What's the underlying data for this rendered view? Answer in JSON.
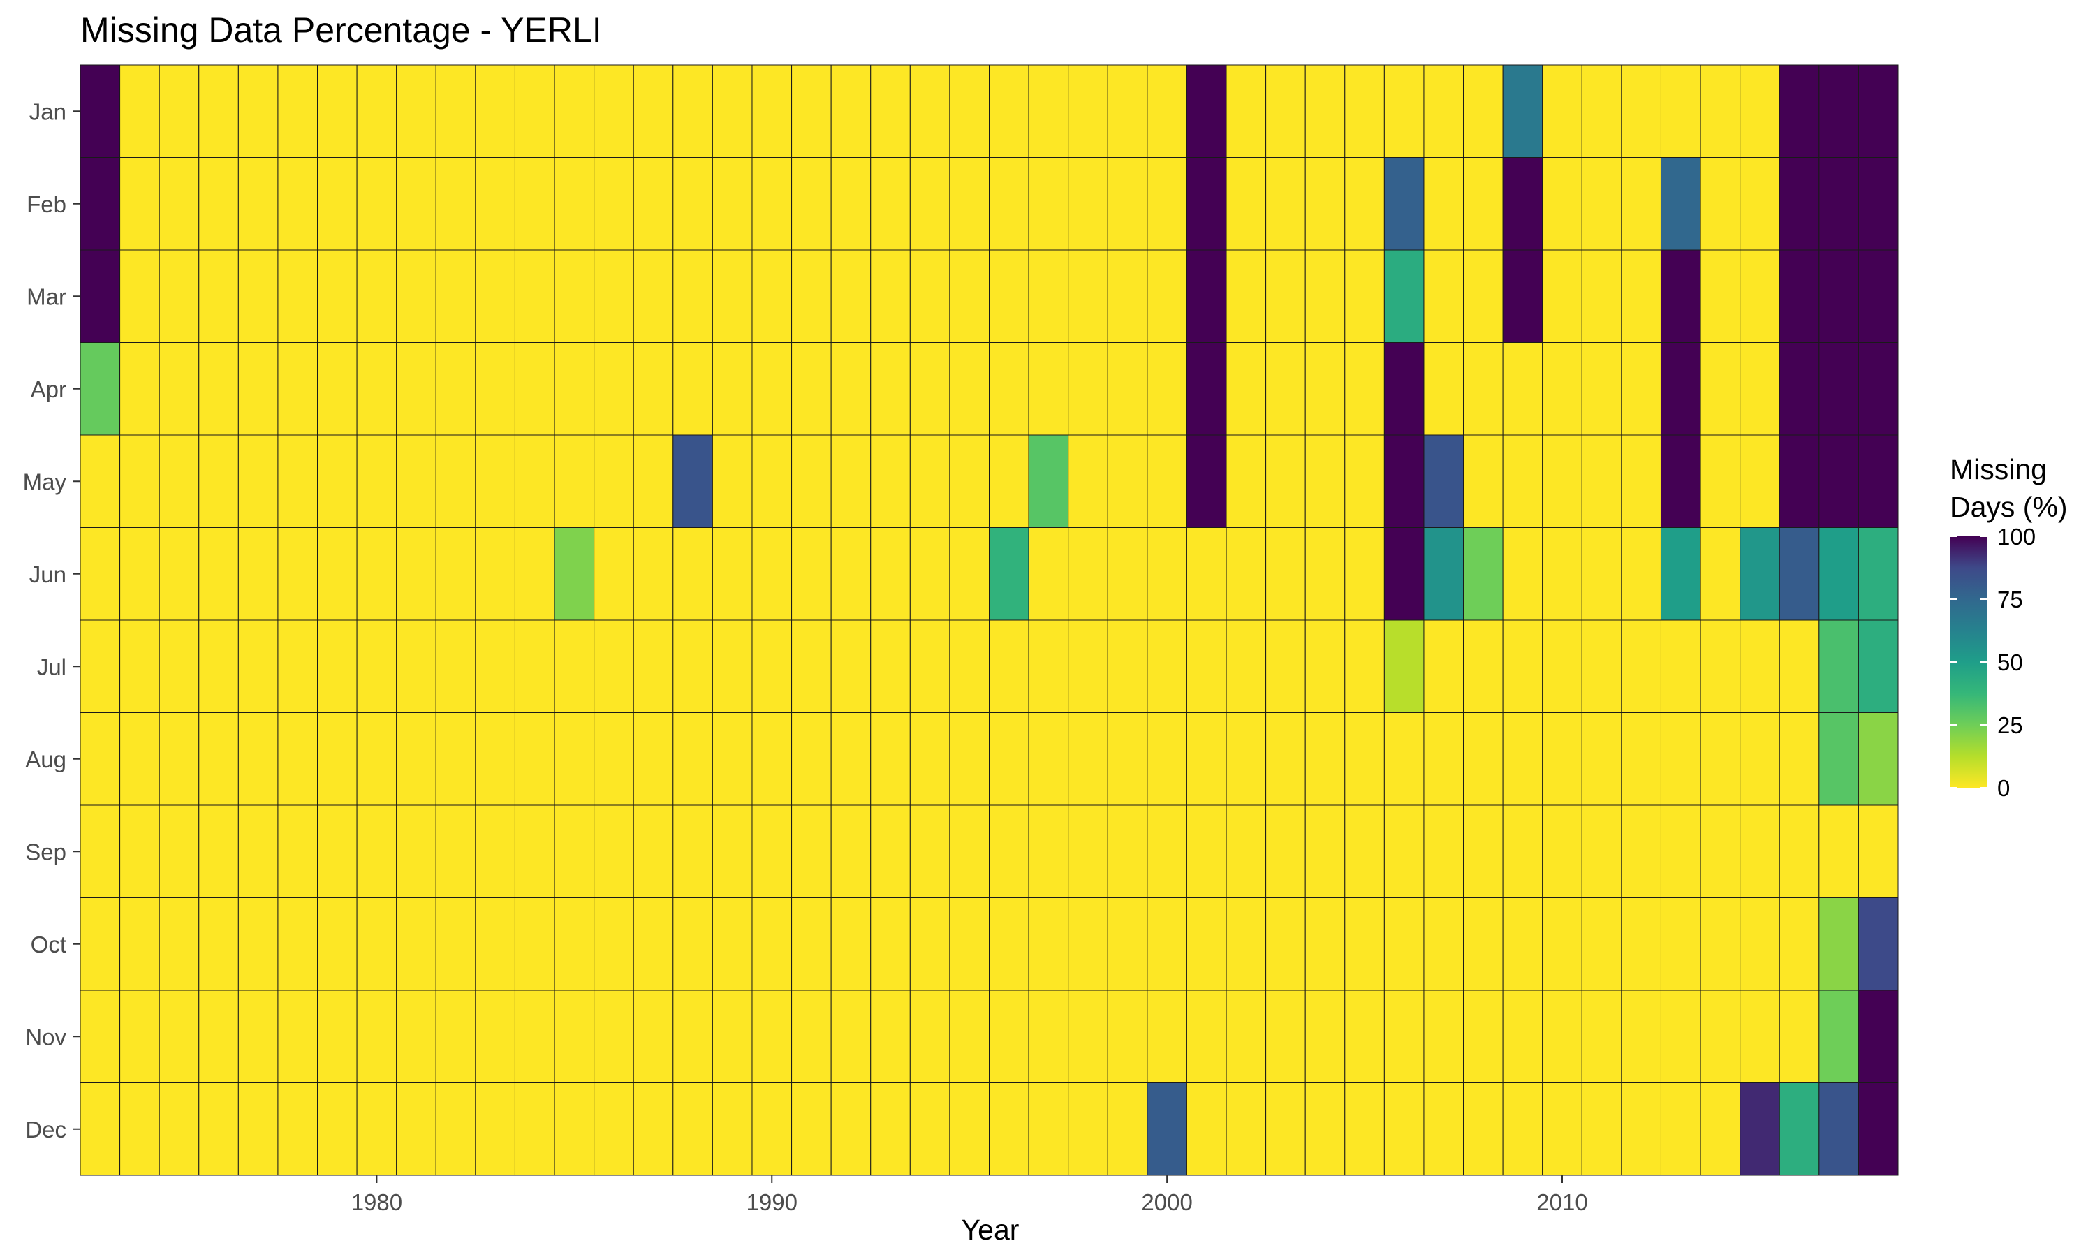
{
  "chart_data": {
    "type": "heatmap",
    "title": "Missing Data Percentage - YERLI",
    "xlabel": "Year",
    "ylabel": "",
    "x_start": 1973,
    "x_end": 2018,
    "xlim": [
      1972.5,
      2018.5
    ],
    "x_ticks": [
      1980,
      1990,
      2000,
      2010
    ],
    "months": [
      "Jan",
      "Feb",
      "Mar",
      "Apr",
      "May",
      "Jun",
      "Jul",
      "Aug",
      "Sep",
      "Oct",
      "Nov",
      "Dec"
    ],
    "colorscale": "viridis (reversed: 0 = yellow, 100 = dark purple)",
    "default_value": 0,
    "grid": false,
    "legend": {
      "title_lines": [
        "Missing",
        "Days (%)"
      ],
      "ticks": [
        0,
        25,
        50,
        75,
        100
      ],
      "range": [
        0,
        100
      ],
      "position": "right"
    },
    "nonzero_cells": [
      {
        "year": 1973,
        "month": "Jan",
        "value": 100
      },
      {
        "year": 1973,
        "month": "Feb",
        "value": 100
      },
      {
        "year": 1973,
        "month": "Mar",
        "value": 100
      },
      {
        "year": 1973,
        "month": "Apr",
        "value": 27
      },
      {
        "year": 1985,
        "month": "Jun",
        "value": 22
      },
      {
        "year": 1988,
        "month": "May",
        "value": 83
      },
      {
        "year": 1996,
        "month": "Jun",
        "value": 40
      },
      {
        "year": 1997,
        "month": "May",
        "value": 30
      },
      {
        "year": 2000,
        "month": "Dec",
        "value": 80
      },
      {
        "year": 2001,
        "month": "Jan",
        "value": 100
      },
      {
        "year": 2001,
        "month": "Feb",
        "value": 100
      },
      {
        "year": 2001,
        "month": "Mar",
        "value": 100
      },
      {
        "year": 2001,
        "month": "Apr",
        "value": 100
      },
      {
        "year": 2001,
        "month": "May",
        "value": 100
      },
      {
        "year": 2006,
        "month": "Feb",
        "value": 78
      },
      {
        "year": 2006,
        "month": "Mar",
        "value": 43
      },
      {
        "year": 2006,
        "month": "Apr",
        "value": 100
      },
      {
        "year": 2006,
        "month": "May",
        "value": 100
      },
      {
        "year": 2006,
        "month": "Jun",
        "value": 100
      },
      {
        "year": 2006,
        "month": "Jul",
        "value": 12
      },
      {
        "year": 2007,
        "month": "May",
        "value": 83
      },
      {
        "year": 2007,
        "month": "Jun",
        "value": 55
      },
      {
        "year": 2008,
        "month": "Jun",
        "value": 25
      },
      {
        "year": 2009,
        "month": "Jan",
        "value": 67
      },
      {
        "year": 2009,
        "month": "Feb",
        "value": 100
      },
      {
        "year": 2009,
        "month": "Mar",
        "value": 100
      },
      {
        "year": 2013,
        "month": "Feb",
        "value": 75
      },
      {
        "year": 2013,
        "month": "Mar",
        "value": 100
      },
      {
        "year": 2013,
        "month": "Apr",
        "value": 100
      },
      {
        "year": 2013,
        "month": "May",
        "value": 100
      },
      {
        "year": 2013,
        "month": "Jun",
        "value": 50
      },
      {
        "year": 2015,
        "month": "Jun",
        "value": 53
      },
      {
        "year": 2015,
        "month": "Dec",
        "value": 93
      },
      {
        "year": 2016,
        "month": "Jan",
        "value": 100
      },
      {
        "year": 2016,
        "month": "Feb",
        "value": 100
      },
      {
        "year": 2016,
        "month": "Mar",
        "value": 100
      },
      {
        "year": 2016,
        "month": "Apr",
        "value": 100
      },
      {
        "year": 2016,
        "month": "May",
        "value": 100
      },
      {
        "year": 2016,
        "month": "Jun",
        "value": 80
      },
      {
        "year": 2016,
        "month": "Dec",
        "value": 42
      },
      {
        "year": 2017,
        "month": "Jan",
        "value": 100
      },
      {
        "year": 2017,
        "month": "Feb",
        "value": 100
      },
      {
        "year": 2017,
        "month": "Mar",
        "value": 100
      },
      {
        "year": 2017,
        "month": "Apr",
        "value": 100
      },
      {
        "year": 2017,
        "month": "May",
        "value": 100
      },
      {
        "year": 2017,
        "month": "Jun",
        "value": 50
      },
      {
        "year": 2017,
        "month": "Jul",
        "value": 33
      },
      {
        "year": 2017,
        "month": "Aug",
        "value": 30
      },
      {
        "year": 2017,
        "month": "Oct",
        "value": 20
      },
      {
        "year": 2017,
        "month": "Nov",
        "value": 25
      },
      {
        "year": 2017,
        "month": "Dec",
        "value": 83
      },
      {
        "year": 2018,
        "month": "Jan",
        "value": 100
      },
      {
        "year": 2018,
        "month": "Feb",
        "value": 100
      },
      {
        "year": 2018,
        "month": "Mar",
        "value": 100
      },
      {
        "year": 2018,
        "month": "Apr",
        "value": 100
      },
      {
        "year": 2018,
        "month": "May",
        "value": 100
      },
      {
        "year": 2018,
        "month": "Jun",
        "value": 42
      },
      {
        "year": 2018,
        "month": "Jul",
        "value": 42
      },
      {
        "year": 2018,
        "month": "Aug",
        "value": 20
      },
      {
        "year": 2018,
        "month": "Oct",
        "value": 87
      },
      {
        "year": 2018,
        "month": "Nov",
        "value": 100
      },
      {
        "year": 2018,
        "month": "Dec",
        "value": 100
      }
    ]
  }
}
